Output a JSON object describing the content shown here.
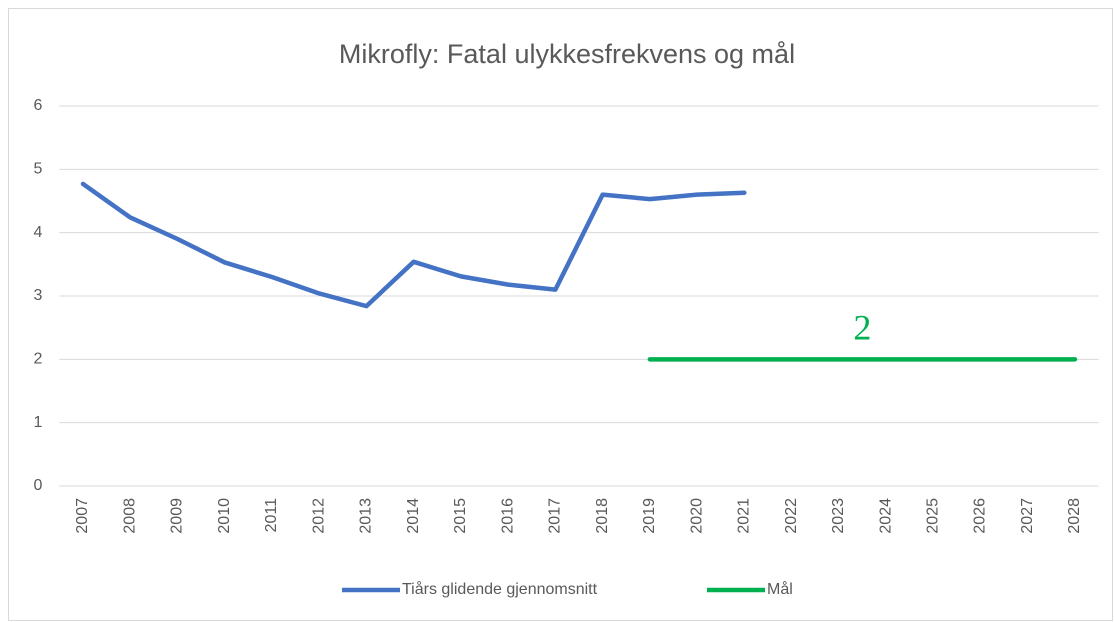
{
  "chart_data": {
    "type": "line",
    "title": "Mikrofly: Fatal ulykkesfrekvens og mål",
    "categories": [
      "2007",
      "2008",
      "2009",
      "2010",
      "2011",
      "2012",
      "2013",
      "2014",
      "2015",
      "2016",
      "2017",
      "2018",
      "2019",
      "2020",
      "2021",
      "2022",
      "2023",
      "2024",
      "2025",
      "2026",
      "2027",
      "2028"
    ],
    "series": [
      {
        "name": "Tiårs glidende gjennomsnitt",
        "color": "#4472c4",
        "values": [
          4.77,
          4.24,
          3.9,
          3.53,
          3.3,
          3.04,
          2.84,
          3.54,
          3.31,
          3.18,
          3.1,
          4.6,
          4.53,
          4.6,
          4.63,
          null,
          null,
          null,
          null,
          null,
          null,
          null
        ]
      },
      {
        "name": "Mål",
        "color": "#00b050",
        "values": [
          null,
          null,
          null,
          null,
          null,
          null,
          null,
          null,
          null,
          null,
          null,
          null,
          2,
          2,
          2,
          2,
          2,
          2,
          2,
          2,
          2,
          2
        ]
      }
    ],
    "annotations": [
      {
        "text": "2",
        "color": "#00b050"
      }
    ],
    "ylim": [
      0,
      6
    ],
    "yticks": [
      0,
      1,
      2,
      3,
      4,
      5,
      6
    ],
    "grid": true,
    "legend": "bottom"
  }
}
